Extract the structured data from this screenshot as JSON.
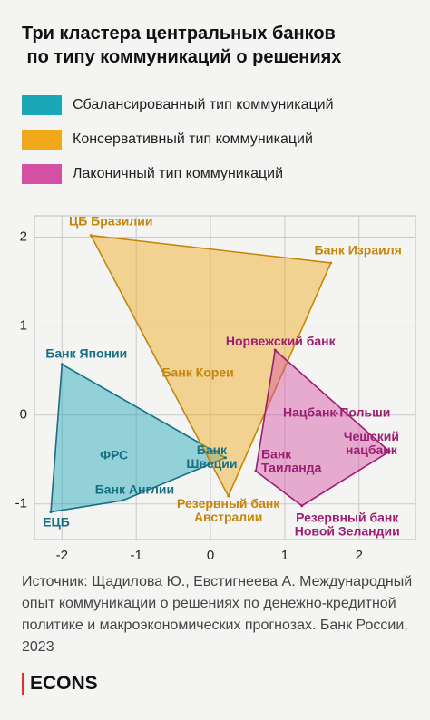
{
  "chart_data": {
    "type": "polygon",
    "title": "Три кластера центральных банков по типу коммуникаций о решениях",
    "xlim": [
      -2.37,
      2.76
    ],
    "ylim": [
      -1.4,
      2.24
    ],
    "xticks": [
      -2,
      -1,
      0,
      1,
      2
    ],
    "yticks": [
      -1,
      0,
      1,
      2
    ],
    "grid": true,
    "series": [
      {
        "name": "Сбалансированный тип коммуникаций",
        "color": "#1aa7b8",
        "labels": [
          "Банк Японии",
          "ФРС",
          "Банк Англии",
          "ЕЦБ",
          "Банк\nШвеции"
        ],
        "x": [
          -2.0,
          -1.3,
          -1.18,
          -2.15,
          0.2
        ],
        "y": [
          0.57,
          -0.46,
          -0.96,
          -1.09,
          -0.48
        ]
      },
      {
        "name": "Консервативный тип коммуникаций",
        "color": "#f0a81a",
        "labels": [
          "ЦБ Бразилии",
          "Банк Израиля",
          "Банк Кореи",
          "Резервный банк\nАвстралии"
        ],
        "x": [
          -1.61,
          1.62,
          -0.17,
          0.24
        ],
        "y": [
          2.02,
          1.71,
          0.47,
          -0.91
        ]
      },
      {
        "name": "Лаконичный тип коммуникаций",
        "color": "#d450a4",
        "labels": [
          "Норвежский банк",
          "Нацбанк Польши",
          "Банк\nТаиланда",
          "Чешский\nнацбанк",
          "Резервный банк\nНовой Зеландии"
        ],
        "x": [
          0.87,
          1.7,
          0.61,
          2.41,
          1.23
        ],
        "y": [
          0.73,
          0.02,
          -0.63,
          -0.41,
          -1.02
        ]
      }
    ],
    "source": "Источник: Щадилова Ю., Евстигнеева А. Международный опыт коммуникации о решениях по денежно-кредитной политике и макроэкономических прогнозах. Банк России, 2023",
    "brand": "ECONS"
  }
}
